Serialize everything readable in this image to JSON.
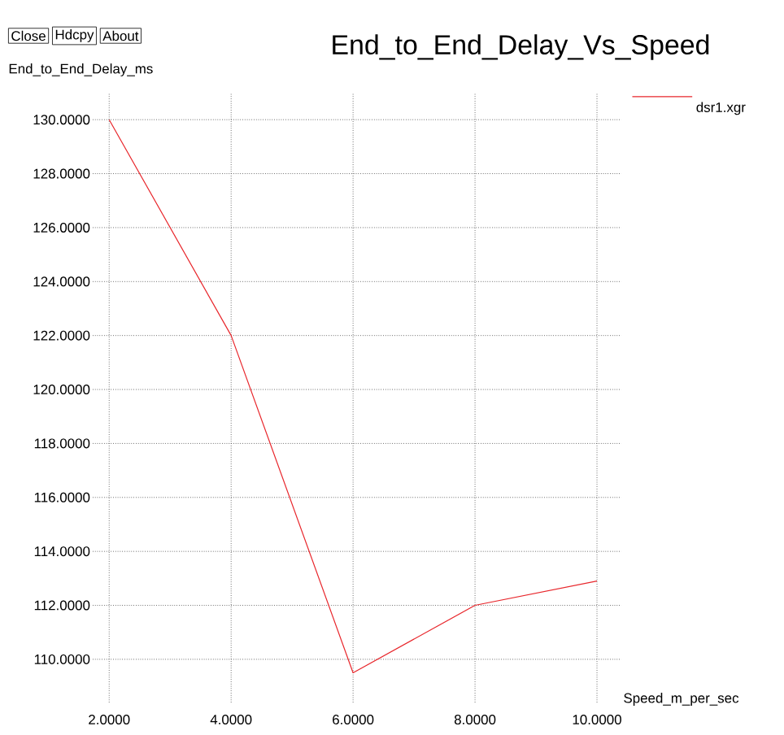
{
  "chart_data": {
    "type": "line",
    "title": "End_to_End_Delay_Vs_Speed",
    "xlabel": "Speed_m_per_sec",
    "ylabel": "End_to_End_Delay_ms",
    "annotations": [
      "Close",
      "Hdcpy",
      "About"
    ],
    "x": [
      2,
      4,
      6,
      8,
      10
    ],
    "series": [
      {
        "name": "dsr1.xgr",
        "color": "#e8262b",
        "values": [
          130,
          122,
          109.5,
          112,
          112.9
        ]
      }
    ],
    "xlim": [
      1.73,
      10.4
    ],
    "ylim": [
      108.4,
      131
    ],
    "xticks": [
      {
        "value": 2,
        "label": "2.0000"
      },
      {
        "value": 4,
        "label": "4.0000"
      },
      {
        "value": 6,
        "label": "6.0000"
      },
      {
        "value": 8,
        "label": "8.0000"
      },
      {
        "value": 10,
        "label": "10.0000"
      }
    ],
    "yticks": [
      {
        "value": 110,
        "label": "110.0000"
      },
      {
        "value": 112,
        "label": "112.0000"
      },
      {
        "value": 114,
        "label": "114.0000"
      },
      {
        "value": 116,
        "label": "116.0000"
      },
      {
        "value": 118,
        "label": "118.0000"
      },
      {
        "value": 120,
        "label": "120.0000"
      },
      {
        "value": 122,
        "label": "122.0000"
      },
      {
        "value": 124,
        "label": "124.0000"
      },
      {
        "value": 126,
        "label": "126.0000"
      },
      {
        "value": 128,
        "label": "128.0000"
      },
      {
        "value": 130,
        "label": "130.0000"
      }
    ],
    "grid": true,
    "legend": "top right",
    "line_style": "solid",
    "marker": "none"
  }
}
